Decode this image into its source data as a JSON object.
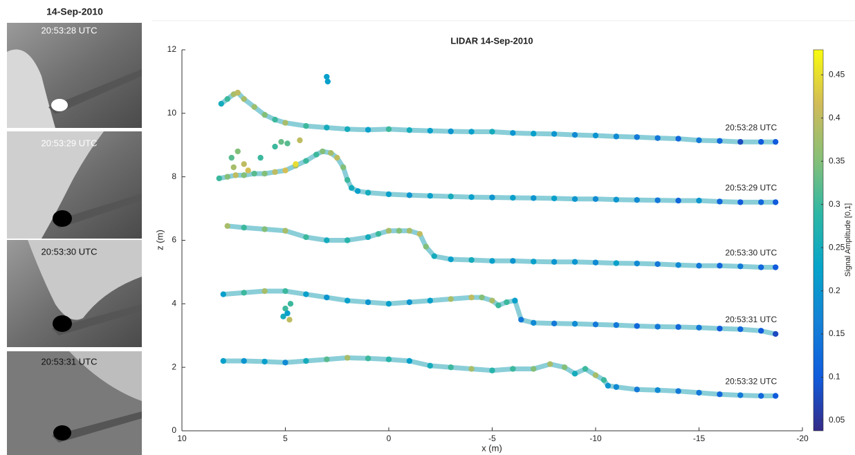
{
  "photos": {
    "title": "14-Sep-2010",
    "labels": [
      "20:53:28 UTC",
      "20:53:29 UTC",
      "20:53:30 UTC",
      "20:53:31 UTC"
    ]
  },
  "chart_data": {
    "type": "scatter",
    "title": "LIDAR 14-Sep-2010",
    "x_label": "x (m)",
    "y_label": "z (m)",
    "xlim": [
      10,
      -20
    ],
    "xticks": [
      10,
      5,
      0,
      -5,
      -10,
      -15,
      -20
    ],
    "ylim": [
      0,
      12
    ],
    "yticks": [
      0,
      2,
      4,
      6,
      8,
      10,
      12
    ],
    "colorbar": {
      "label": "Signal Amplitude [0,1]",
      "clim": [
        0.038,
        0.479
      ],
      "ticks": [
        0.05,
        0.1,
        0.15,
        0.2,
        0.25,
        0.3,
        0.35,
        0.4,
        0.45
      ],
      "colormap": [
        "#352a87",
        "#0f5cdd",
        "#1481d6",
        "#06a4ca",
        "#2eb7a4",
        "#87bf77",
        "#d1bb59",
        "#f9fb0e"
      ]
    },
    "series": [
      {
        "name": "20:53:28 UTC",
        "x": [
          8.1,
          7.8,
          7.5,
          7.3,
          7.0,
          6.5,
          6.0,
          5.5,
          5.0,
          4.0,
          3.0,
          2.0,
          1.0,
          0,
          -1,
          -2,
          -3,
          -4,
          -5,
          -6,
          -7,
          -8,
          -9,
          -10,
          -11,
          -12,
          -13,
          -14,
          -15,
          -16,
          -17,
          -18,
          -18.7
        ],
        "y": [
          10.3,
          10.45,
          10.6,
          10.65,
          10.45,
          10.2,
          9.95,
          9.8,
          9.7,
          9.6,
          9.55,
          9.5,
          9.48,
          9.5,
          9.47,
          9.45,
          9.43,
          9.42,
          9.42,
          9.38,
          9.36,
          9.35,
          9.32,
          9.3,
          9.27,
          9.25,
          9.22,
          9.2,
          9.15,
          9.13,
          9.1,
          9.1,
          9.1
        ],
        "c": [
          0.25,
          0.3,
          0.38,
          0.4,
          0.38,
          0.37,
          0.35,
          0.3,
          0.38,
          0.3,
          0.25,
          0.25,
          0.22,
          0.3,
          0.25,
          0.22,
          0.2,
          0.22,
          0.25,
          0.2,
          0.22,
          0.2,
          0.18,
          0.2,
          0.18,
          0.15,
          0.15,
          0.12,
          0.15,
          0.12,
          0.08,
          0.1,
          0.1
        ],
        "outliers": {
          "x": [
            3,
            2.95
          ],
          "y": [
            11.15,
            11.0
          ],
          "c": [
            0.22,
            0.22
          ]
        }
      },
      {
        "name": "20:53:29 UTC",
        "x": [
          8.2,
          7.8,
          7.4,
          7,
          6.5,
          6,
          5.5,
          5,
          4.5,
          4,
          3.5,
          3.2,
          2.8,
          2.5,
          2.2,
          2,
          1.8,
          1.5,
          1,
          0,
          -1,
          -2,
          -3,
          -4,
          -5,
          -6,
          -7,
          -8,
          -9,
          -10,
          -11,
          -12,
          -13,
          -14,
          -15,
          -16,
          -17,
          -18,
          -18.7
        ],
        "y": [
          7.95,
          8.0,
          8.05,
          8.05,
          8.1,
          8.1,
          8.15,
          8.2,
          8.35,
          8.5,
          8.7,
          8.8,
          8.75,
          8.6,
          8.3,
          7.9,
          7.65,
          7.55,
          7.5,
          7.45,
          7.42,
          7.4,
          7.38,
          7.36,
          7.35,
          7.34,
          7.33,
          7.32,
          7.3,
          7.3,
          7.28,
          7.27,
          7.26,
          7.25,
          7.25,
          7.22,
          7.2,
          7.2,
          7.2
        ],
        "c": [
          0.3,
          0.35,
          0.4,
          0.35,
          0.32,
          0.35,
          0.4,
          0.42,
          0.38,
          0.3,
          0.3,
          0.35,
          0.38,
          0.4,
          0.35,
          0.3,
          0.25,
          0.22,
          0.25,
          0.22,
          0.2,
          0.22,
          0.25,
          0.22,
          0.2,
          0.22,
          0.2,
          0.22,
          0.2,
          0.18,
          0.2,
          0.18,
          0.15,
          0.12,
          0.2,
          0.12,
          0.1,
          0.12,
          0.1
        ],
        "outliers": {
          "x": [
            7.6,
            7.3,
            7.0,
            6.8,
            5.5,
            5.2,
            4.9,
            4.5,
            4.3,
            7.5,
            6.2
          ],
          "y": [
            8.6,
            8.8,
            8.4,
            8.2,
            8.95,
            9.1,
            9.05,
            8.4,
            9.15,
            8.3,
            8.6
          ],
          "c": [
            0.32,
            0.35,
            0.4,
            0.42,
            0.3,
            0.33,
            0.32,
            0.45,
            0.4,
            0.38,
            0.3
          ]
        }
      },
      {
        "name": "20:53:30 UTC",
        "x": [
          7.8,
          7,
          6,
          5,
          4,
          3,
          2,
          1,
          0.5,
          0,
          -0.5,
          -1,
          -1.5,
          -1.8,
          -2.2,
          -3,
          -4,
          -5,
          -6,
          -7,
          -8,
          -9,
          -10,
          -11,
          -12,
          -13,
          -14,
          -15,
          -16,
          -17,
          -18,
          -18.7
        ],
        "y": [
          6.45,
          6.4,
          6.35,
          6.3,
          6.1,
          6.0,
          6.0,
          6.1,
          6.2,
          6.3,
          6.3,
          6.3,
          6.2,
          5.8,
          5.5,
          5.4,
          5.38,
          5.35,
          5.35,
          5.33,
          5.32,
          5.32,
          5.3,
          5.28,
          5.27,
          5.25,
          5.22,
          5.2,
          5.2,
          5.18,
          5.15,
          5.15
        ],
        "c": [
          0.38,
          0.3,
          0.35,
          0.38,
          0.3,
          0.25,
          0.28,
          0.25,
          0.3,
          0.38,
          0.35,
          0.38,
          0.4,
          0.35,
          0.25,
          0.22,
          0.25,
          0.22,
          0.2,
          0.22,
          0.2,
          0.2,
          0.18,
          0.22,
          0.18,
          0.15,
          0.18,
          0.15,
          0.12,
          0.15,
          0.12,
          0.1
        ]
      },
      {
        "name": "20:53:31 UTC",
        "x": [
          8,
          7,
          6,
          5,
          4,
          3,
          2,
          1,
          0,
          -1,
          -2,
          -3,
          -4,
          -4.5,
          -5,
          -5.3,
          -5.7,
          -6.1,
          -6.4,
          -7,
          -8,
          -9,
          -10,
          -11,
          -12,
          -13,
          -14,
          -15,
          -16,
          -17,
          -18,
          -18.7
        ],
        "y": [
          4.3,
          4.35,
          4.4,
          4.4,
          4.3,
          4.2,
          4.1,
          4.05,
          4.0,
          4.05,
          4.1,
          4.15,
          4.2,
          4.2,
          4.1,
          3.95,
          4.05,
          4.1,
          3.5,
          3.4,
          3.38,
          3.37,
          3.35,
          3.33,
          3.3,
          3.28,
          3.27,
          3.25,
          3.22,
          3.2,
          3.15,
          3.05
        ],
        "c": [
          0.22,
          0.3,
          0.38,
          0.3,
          0.22,
          0.2,
          0.22,
          0.2,
          0.22,
          0.2,
          0.22,
          0.38,
          0.4,
          0.35,
          0.38,
          0.3,
          0.3,
          0.22,
          0.15,
          0.18,
          0.15,
          0.18,
          0.15,
          0.15,
          0.12,
          0.15,
          0.12,
          0.15,
          0.1,
          0.12,
          0.1,
          0.08
        ],
        "outliers": {
          "x": [
            5.1,
            5.0,
            4.8,
            4.75,
            4.9
          ],
          "y": [
            3.6,
            3.85,
            3.5,
            4.0,
            3.7
          ],
          "c": [
            0.25,
            0.3,
            0.4,
            0.3,
            0.22
          ]
        }
      },
      {
        "name": "20:53:32 UTC",
        "x": [
          8,
          7,
          6,
          5,
          4,
          3,
          2,
          1,
          0,
          -1,
          -2,
          -3,
          -4,
          -5,
          -6,
          -7,
          -7.8,
          -8.5,
          -9,
          -9.5,
          -10,
          -10.4,
          -10.6,
          -11,
          -12,
          -13,
          -14,
          -15,
          -16,
          -17,
          -18,
          -18.7
        ],
        "y": [
          2.2,
          2.2,
          2.18,
          2.15,
          2.2,
          2.25,
          2.3,
          2.28,
          2.25,
          2.2,
          2.05,
          2.0,
          1.95,
          1.9,
          1.95,
          1.95,
          2.1,
          2.0,
          1.8,
          1.95,
          1.75,
          1.6,
          1.42,
          1.38,
          1.3,
          1.28,
          1.25,
          1.2,
          1.15,
          1.12,
          1.1,
          1.1
        ],
        "c": [
          0.22,
          0.2,
          0.22,
          0.18,
          0.25,
          0.32,
          0.38,
          0.3,
          0.28,
          0.22,
          0.25,
          0.3,
          0.38,
          0.28,
          0.3,
          0.35,
          0.38,
          0.35,
          0.25,
          0.3,
          0.38,
          0.3,
          0.2,
          0.18,
          0.15,
          0.18,
          0.15,
          0.15,
          0.12,
          0.15,
          0.12,
          0.1
        ]
      }
    ]
  }
}
